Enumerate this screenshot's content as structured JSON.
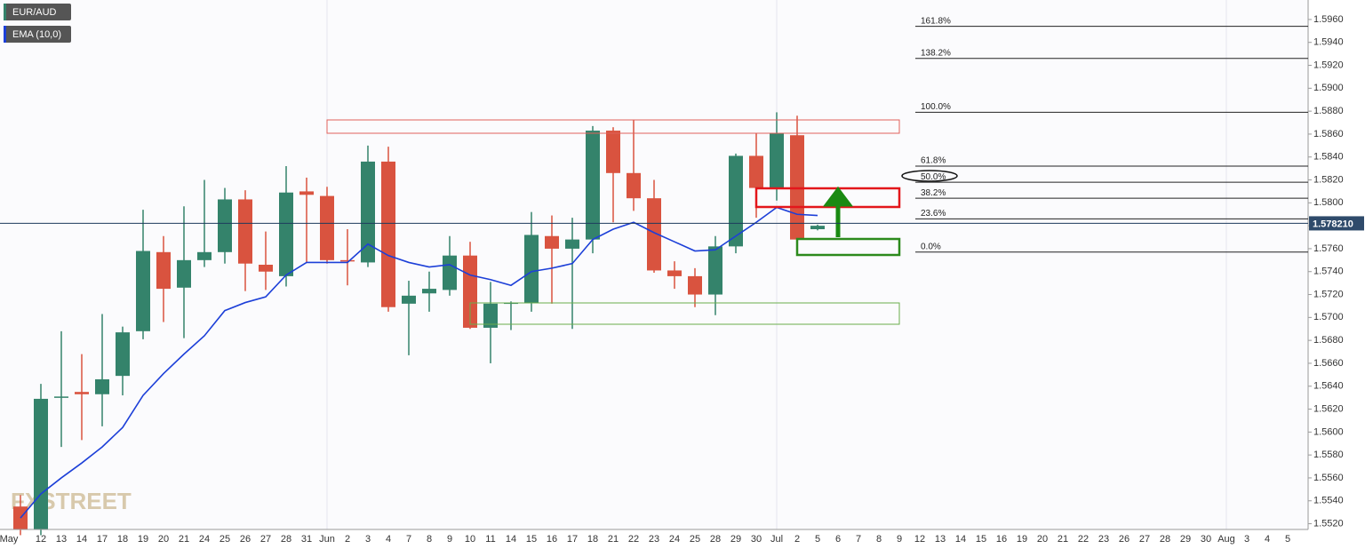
{
  "chart_data": {
    "type": "candlestick",
    "legend": [
      "EUR/AUD",
      "EMA (10,0)"
    ],
    "watermark": "FXSTREET",
    "categories": [
      "May",
      "12",
      "13",
      "14",
      "17",
      "18",
      "19",
      "20",
      "21",
      "24",
      "25",
      "26",
      "27",
      "28",
      "31",
      "Jun",
      "2",
      "3",
      "4",
      "7",
      "8",
      "9",
      "10",
      "11",
      "14",
      "15",
      "16",
      "17",
      "18",
      "21",
      "22",
      "23",
      "24",
      "25",
      "28",
      "29",
      "30",
      "Jul",
      "2",
      "5",
      "6",
      "7",
      "8",
      "9",
      "12",
      "13",
      "14",
      "15",
      "16",
      "19",
      "20",
      "21",
      "22",
      "23",
      "26",
      "27",
      "28",
      "29",
      "30",
      "Aug",
      "3",
      "4",
      "5"
    ],
    "open": [
      1.5535,
      1.5515,
      1.563,
      1.5635,
      1.5633,
      1.5649,
      1.5688,
      1.5757,
      1.5726,
      1.575,
      1.5757,
      1.5803,
      1.5746,
      1.5736,
      1.581,
      1.5806,
      1.575,
      1.5748,
      1.5836,
      1.5712,
      1.5721,
      1.5724,
      1.5754,
      1.5691,
      1.5712,
      1.5713,
      1.5771,
      1.576,
      1.5768,
      1.5863,
      1.5826,
      1.5804,
      1.5741,
      1.5736,
      1.572,
      1.5762,
      1.5841,
      1.5813,
      1.5859,
      1.5777,
      null,
      null,
      null,
      null,
      null,
      null,
      null,
      null,
      null,
      null,
      null,
      null,
      null,
      null,
      null,
      null,
      null,
      null,
      null,
      null,
      null,
      null,
      null
    ],
    "high": [
      1.5545,
      1.5642,
      1.5688,
      1.5668,
      1.5703,
      1.5692,
      1.5794,
      1.5771,
      1.5797,
      1.582,
      1.5813,
      1.5811,
      1.5775,
      1.5832,
      1.5822,
      1.5814,
      1.5777,
      1.585,
      1.5849,
      1.5732,
      1.574,
      1.5771,
      1.5766,
      1.5731,
      1.5714,
      1.5792,
      1.5789,
      1.5787,
      1.5867,
      1.5866,
      1.5872,
      1.582,
      1.5749,
      1.5743,
      1.5771,
      1.5843,
      1.5861,
      1.5879,
      1.5876,
      1.5781,
      null,
      null,
      null,
      null,
      null,
      null,
      null,
      null,
      null,
      null,
      null,
      null,
      null,
      null,
      null,
      null,
      null,
      null,
      null,
      null,
      null,
      null,
      null
    ],
    "low": [
      1.551,
      1.551,
      1.5587,
      1.5593,
      1.5605,
      1.5632,
      1.5681,
      1.5696,
      1.5682,
      1.5744,
      1.5747,
      1.5723,
      1.5724,
      1.5727,
      1.5748,
      1.5747,
      1.5728,
      1.5744,
      1.5705,
      1.5667,
      1.5705,
      1.5719,
      1.569,
      1.566,
      1.5689,
      1.5705,
      1.5712,
      1.569,
      1.5756,
      1.5783,
      1.5793,
      1.5739,
      1.5725,
      1.5709,
      1.5702,
      1.5756,
      1.5787,
      1.5802,
      1.5764,
      1.5776,
      null,
      null,
      null,
      null,
      null,
      null,
      null,
      null,
      null,
      null,
      null,
      null,
      null,
      null,
      null,
      null,
      null,
      null,
      null,
      null,
      null,
      null,
      null
    ],
    "close": [
      1.5515,
      1.5629,
      1.5631,
      1.5633,
      1.5646,
      1.5687,
      1.5758,
      1.5725,
      1.575,
      1.5757,
      1.5803,
      1.5747,
      1.574,
      1.5809,
      1.5807,
      1.575,
      1.5749,
      1.5836,
      1.5709,
      1.5719,
      1.5725,
      1.5754,
      1.5691,
      1.5712,
      1.5713,
      1.5772,
      1.576,
      1.5768,
      1.5863,
      1.5826,
      1.5804,
      1.5741,
      1.5736,
      1.572,
      1.5762,
      1.5841,
      1.5813,
      1.5861,
      1.5768,
      1.578,
      null,
      null,
      null,
      null,
      null,
      null,
      null,
      null,
      null,
      null,
      null,
      null,
      null,
      null,
      null,
      null,
      null,
      null,
      null,
      null,
      null,
      null,
      null
    ],
    "up_color": "#34836b",
    "down_color": "#d9533f",
    "series": [
      {
        "name": "EMA (10,0)",
        "color": "#1c3fd8",
        "values": [
          1.5525,
          1.5546,
          1.556,
          1.5573,
          1.5587,
          1.5604,
          1.5632,
          1.5651,
          1.5668,
          1.5684,
          1.5706,
          1.5713,
          1.5718,
          1.5737,
          1.5748,
          1.5748,
          1.5748,
          1.5764,
          1.5754,
          1.5748,
          1.5744,
          1.5746,
          1.5737,
          1.5733,
          1.5728,
          1.574,
          1.5743,
          1.5747,
          1.5768,
          1.5777,
          1.5783,
          1.5774,
          1.5766,
          1.5758,
          1.5759,
          1.5771,
          1.5783,
          1.5796,
          1.579,
          1.5789,
          null,
          null,
          null,
          null,
          null,
          null,
          null,
          null,
          null,
          null,
          null,
          null,
          null,
          null,
          null,
          null,
          null,
          null,
          null,
          null,
          null,
          null,
          null
        ]
      }
    ],
    "last_price": {
      "value": 1.57821,
      "label": "1.578210"
    },
    "fib_levels": [
      {
        "label": "161.8%",
        "value": 1.5954
      },
      {
        "label": "138.2%",
        "value": 1.5926
      },
      {
        "label": "100.0%",
        "value": 1.5879
      },
      {
        "label": "61.8%",
        "value": 1.5832
      },
      {
        "label": "50.0%",
        "value": 1.5818
      },
      {
        "label": "38.2%",
        "value": 1.5804
      },
      {
        "label": "23.6%",
        "value": 1.5786
      },
      {
        "label": "0.0%",
        "value": 1.5757
      }
    ],
    "ylim": [
      1.5515,
      1.5977
    ],
    "yticks": [
      {
        "value": 1.552,
        "label": "1.5520"
      },
      {
        "value": 1.554,
        "label": "1.5540"
      },
      {
        "value": 1.556,
        "label": "1.5560"
      },
      {
        "value": 1.558,
        "label": "1.5580"
      },
      {
        "value": 1.56,
        "label": "1.5600"
      },
      {
        "value": 1.562,
        "label": "1.5620"
      },
      {
        "value": 1.564,
        "label": "1.5640"
      },
      {
        "value": 1.566,
        "label": "1.5660"
      },
      {
        "value": 1.568,
        "label": "1.5680"
      },
      {
        "value": 1.57,
        "label": "1.5700"
      },
      {
        "value": 1.572,
        "label": "1.5720"
      },
      {
        "value": 1.574,
        "label": "1.5740"
      },
      {
        "value": 1.576,
        "label": "1.5760"
      },
      {
        "value": 1.578,
        "label": "1.5780"
      },
      {
        "value": 1.58,
        "label": "1.5800"
      },
      {
        "value": 1.582,
        "label": "1.5820"
      },
      {
        "value": 1.584,
        "label": "1.5840"
      },
      {
        "value": 1.586,
        "label": "1.5860"
      },
      {
        "value": 1.588,
        "label": "1.5880"
      },
      {
        "value": 1.59,
        "label": "1.5900"
      },
      {
        "value": 1.592,
        "label": "1.5920"
      },
      {
        "value": 1.594,
        "label": "1.5940"
      },
      {
        "value": 1.596,
        "label": "1.5960"
      }
    ]
  }
}
